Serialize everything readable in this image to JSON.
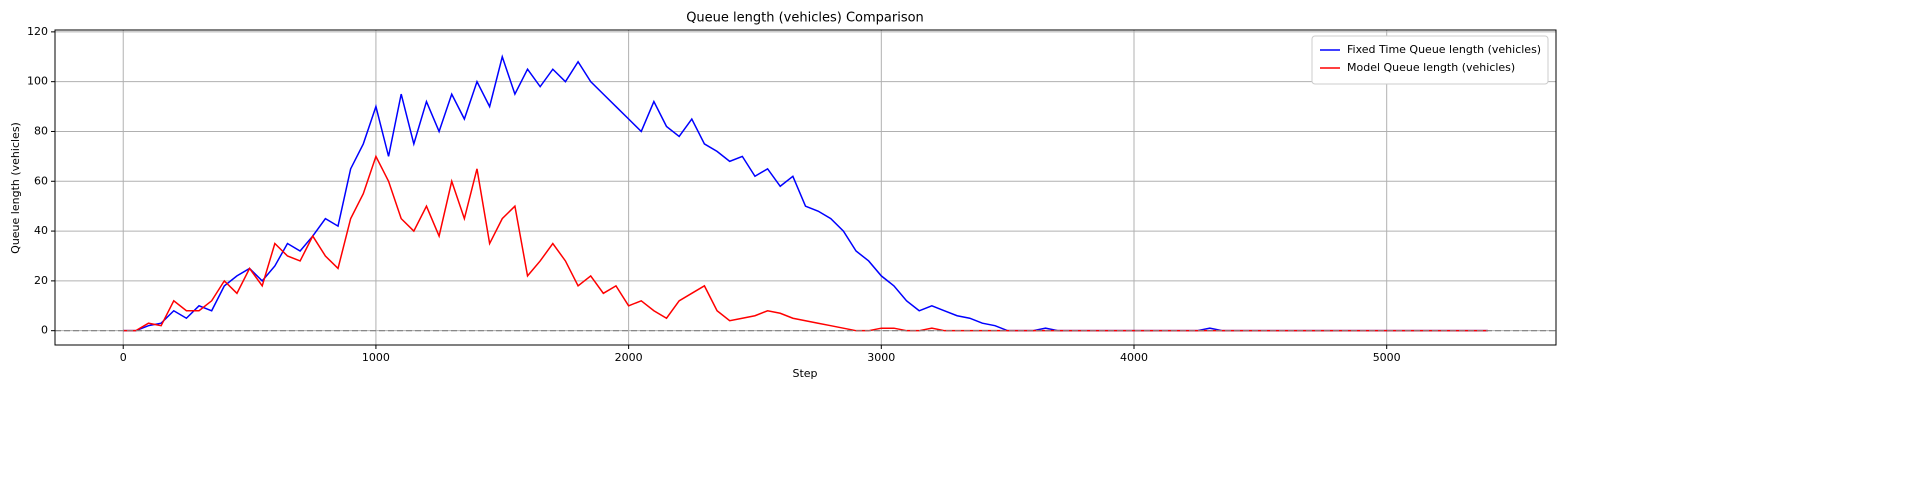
{
  "chart_data": {
    "type": "line",
    "title": "Queue length (vehicles) Comparison",
    "x_label": "Step",
    "y_label": "Queue length (vehicles)",
    "x": [
      0,
      50,
      100,
      150,
      200,
      250,
      300,
      350,
      400,
      450,
      500,
      550,
      600,
      650,
      700,
      750,
      800,
      850,
      900,
      950,
      1000,
      1050,
      1100,
      1150,
      1200,
      1250,
      1300,
      1350,
      1400,
      1450,
      1500,
      1550,
      1600,
      1650,
      1700,
      1750,
      1800,
      1850,
      1900,
      1950,
      2000,
      2050,
      2100,
      2150,
      2200,
      2250,
      2300,
      2350,
      2400,
      2450,
      2500,
      2550,
      2600,
      2650,
      2700,
      2750,
      2800,
      2850,
      2900,
      2950,
      3000,
      3050,
      3100,
      3150,
      3200,
      3250,
      3300,
      3350,
      3400,
      3450,
      3500,
      3550,
      3600,
      3650,
      3700,
      3750,
      3800,
      3850,
      3900,
      3950,
      4000,
      4050,
      4100,
      4150,
      4200,
      4250,
      4300,
      4350,
      4400,
      4450,
      4500,
      4550,
      4600,
      4650,
      4700,
      4750,
      4800,
      4850,
      4900,
      4950,
      5000,
      5050,
      5100,
      5150,
      5200,
      5250,
      5300,
      5350,
      5400
    ],
    "series": [
      {
        "name": "Fixed Time Queue length (vehicles)",
        "color": "#0000ff",
        "values": [
          0,
          0,
          2,
          3,
          8,
          5,
          10,
          8,
          18,
          22,
          25,
          20,
          26,
          35,
          32,
          38,
          45,
          42,
          65,
          75,
          90,
          70,
          95,
          75,
          92,
          80,
          95,
          85,
          100,
          90,
          110,
          95,
          105,
          98,
          105,
          100,
          108,
          100,
          95,
          90,
          85,
          80,
          92,
          82,
          78,
          85,
          75,
          72,
          68,
          70,
          62,
          65,
          58,
          62,
          50,
          48,
          45,
          40,
          32,
          28,
          22,
          18,
          12,
          8,
          10,
          8,
          6,
          5,
          3,
          2,
          0,
          0,
          0,
          1,
          0,
          0,
          0,
          0,
          0,
          0,
          0,
          0,
          0,
          0,
          0,
          0,
          1,
          0,
          0,
          0,
          0,
          0,
          0,
          0,
          0,
          0,
          0,
          0,
          0,
          0,
          0,
          0,
          0,
          0,
          0,
          0,
          0,
          0,
          0
        ]
      },
      {
        "name": "Model Queue length (vehicles)",
        "color": "#ff0000",
        "values": [
          0,
          0,
          3,
          2,
          12,
          8,
          8,
          12,
          20,
          15,
          25,
          18,
          35,
          30,
          28,
          38,
          30,
          25,
          45,
          55,
          70,
          60,
          45,
          40,
          50,
          38,
          60,
          45,
          65,
          35,
          45,
          50,
          22,
          28,
          35,
          28,
          18,
          22,
          15,
          18,
          10,
          12,
          8,
          5,
          12,
          15,
          18,
          8,
          4,
          5,
          6,
          8,
          7,
          5,
          4,
          3,
          2,
          1,
          0,
          0,
          1,
          1,
          0,
          0,
          1,
          0,
          0,
          0,
          0,
          0,
          0,
          0,
          0,
          0,
          0,
          0,
          0,
          0,
          0,
          0,
          0,
          0,
          0,
          0,
          0,
          0,
          0,
          0,
          0,
          0,
          0,
          0,
          0,
          0,
          0,
          0,
          0,
          0,
          0,
          0,
          0,
          0,
          0,
          0,
          0,
          0,
          0,
          0,
          0
        ]
      }
    ],
    "reference_line": {
      "value": 0,
      "color": "#808080"
    },
    "xlim": [
      -270,
      5670
    ],
    "xticks": [
      0,
      1000,
      2000,
      3000,
      4000,
      5000
    ],
    "ylim": [
      -5.75,
      120.75
    ],
    "yticks": [
      0,
      20,
      40,
      60,
      80,
      100,
      120
    ],
    "grid": true,
    "legend": "upper right"
  }
}
